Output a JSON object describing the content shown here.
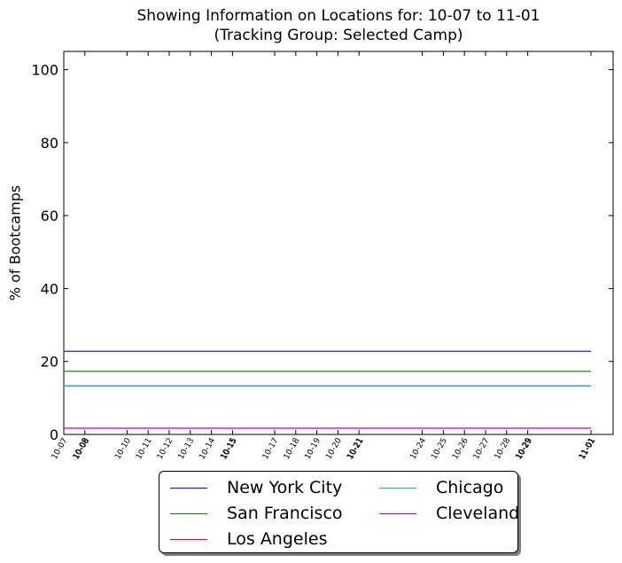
{
  "title_line1": "Showing Information on Locations for: 10-07 to 11-01",
  "title_line2": "(Tracking Group: Selected Camp)",
  "chart_data": {
    "type": "line",
    "ylabel": "% of Bootcamps",
    "xlabel": "",
    "ylim": [
      0,
      105
    ],
    "yticks": [
      0,
      20,
      40,
      60,
      80,
      100
    ],
    "x_dates": [
      "10-07",
      "10-08",
      "10-10",
      "10-11",
      "10-12",
      "10-13",
      "10-14",
      "10-15",
      "10-17",
      "10-18",
      "10-19",
      "10-20",
      "10-21",
      "10-24",
      "10-25",
      "10-26",
      "10-27",
      "10-28",
      "10-29",
      "11-01"
    ],
    "x_tick_labels": [
      "10-07",
      "10-08",
      "10-08",
      "10-10",
      "10-11",
      "10-12",
      "10-13",
      "10-14",
      "10-15",
      "10-15",
      "10-17",
      "10-18",
      "10-19",
      "10-20",
      "10-21",
      "10-21",
      "10-24",
      "10-25",
      "10-26",
      "10-27",
      "10-28",
      "10-29",
      "10-29",
      "11-01",
      "11-01"
    ],
    "series": [
      {
        "name": "New York City",
        "color": "#0000ff",
        "y": 22.8
      },
      {
        "name": "San Francisco",
        "color": "#008000",
        "y": 17.3
      },
      {
        "name": "Los Angeles",
        "color": "#ff0000",
        "y": 13.3
      },
      {
        "name": "Chicago",
        "color": "#00bfbf",
        "y": 13.3
      },
      {
        "name": "Cleveland",
        "color": "#bf00bf",
        "y": 1.7
      }
    ],
    "grid": false,
    "legend_position": "bottom"
  }
}
